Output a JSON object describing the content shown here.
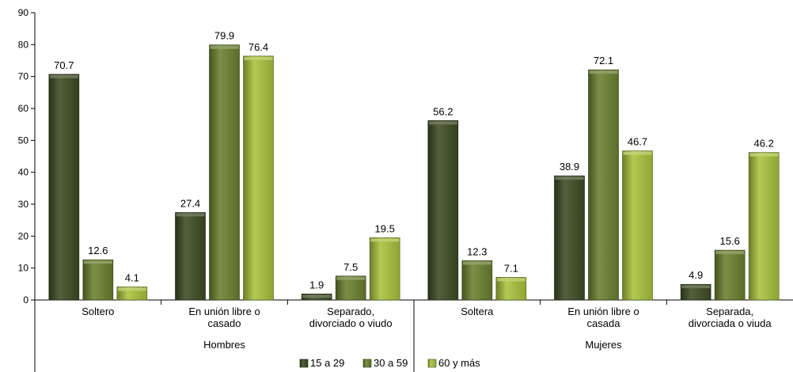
{
  "chart_data": {
    "type": "bar",
    "title": "",
    "xlabel": "",
    "ylabel": "",
    "ylim": [
      0,
      90
    ],
    "yticks": [
      0,
      10,
      20,
      30,
      40,
      50,
      60,
      70,
      80,
      90
    ],
    "grid": false,
    "legend_position": "bottom",
    "groups": [
      {
        "name": "Hombres",
        "categories": [
          "Soltero",
          "En unión libre o casado",
          "Separado, divorciado o viudo"
        ]
      },
      {
        "name": "Mujeres",
        "categories": [
          "Soltera",
          "En unión libre o casada",
          "Separada, divorciada o viuda"
        ]
      }
    ],
    "category_lines": [
      [
        "Soltero"
      ],
      [
        "En unión libre o",
        "casado"
      ],
      [
        "Separado,",
        "divorciado o viudo"
      ],
      [
        "Soltera"
      ],
      [
        "En unión libre o",
        "casada"
      ],
      [
        "Separada,",
        "divorciada o viuda"
      ]
    ],
    "series": [
      {
        "name": "15 a 29",
        "color": "#3d4a22",
        "values": [
          70.7,
          27.4,
          1.9,
          56.2,
          38.9,
          4.9
        ]
      },
      {
        "name": "30 a 59",
        "color": "#6b7f2e",
        "values": [
          12.6,
          79.9,
          7.5,
          12.3,
          72.1,
          15.6
        ]
      },
      {
        "name": "60 y más",
        "color": "#a8c23c",
        "values": [
          4.1,
          76.4,
          19.5,
          7.1,
          46.7,
          46.2
        ]
      }
    ]
  }
}
